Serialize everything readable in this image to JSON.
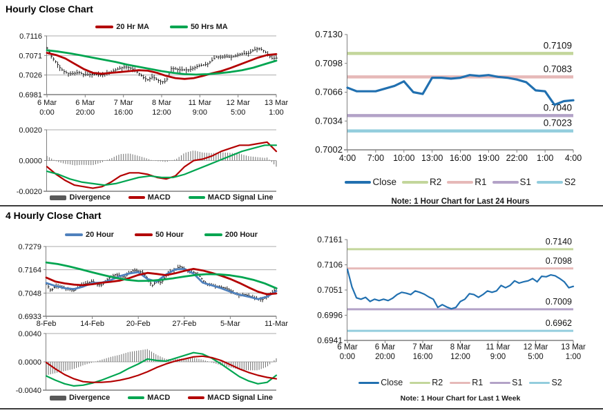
{
  "page": {
    "background": "#ffffff",
    "divider_color": "#3a3a3a"
  },
  "titles": {
    "hourly": "Hourly Close Chart",
    "four_hourly": "4 Hourly Close Chart"
  },
  "notes": {
    "hourly_pivot": "Note: 1 Hour Chart for Last 24 Hours",
    "weekly_pivot": "Note: 1 Hour Chart for Last 1 Week"
  },
  "colors": {
    "red": "#b30000",
    "green": "#00a550",
    "steel_blue": "#4f81bd",
    "close_blue": "#2170b0",
    "r2": "#c3d69b",
    "r1": "#e6b9b8",
    "s1": "#b3a2c7",
    "s2": "#93cddd",
    "divergence_bar": "#6e6e6e",
    "divergence_swatch": "#595959",
    "candle": "#1a1a1a"
  },
  "chart_data": [
    {
      "id": "hourly_price",
      "type": "candlestick",
      "ylim": [
        0.6981,
        0.7116
      ],
      "yticks": {
        "values": [
          0.7116,
          0.7071,
          0.7026,
          0.6981
        ],
        "labels": [
          "0.7116",
          "0.7071",
          "0.7026",
          "0.6981"
        ]
      },
      "xlabels": [
        [
          "6 Mar",
          "0:00"
        ],
        [
          "6 Mar",
          "20:00"
        ],
        [
          "7 Mar",
          "16:00"
        ],
        [
          "8 Mar",
          "12:00"
        ],
        [
          "11 Mar",
          "9:00"
        ],
        [
          "12 Mar",
          "5:00"
        ],
        [
          "13 Mar",
          "1:00"
        ]
      ],
      "legend": [
        {
          "label": "20 Hr MA",
          "color": "#b30000"
        },
        {
          "label": "50 Hrs MA",
          "color": "#00a550"
        }
      ],
      "bar_color": "#1a1a1a",
      "close": [
        0.7088,
        0.7068,
        0.7055,
        0.704,
        0.7032,
        0.7029,
        0.703,
        0.7032,
        0.7027,
        0.7027,
        0.7028,
        0.7027,
        0.7026,
        0.703,
        0.7033,
        0.7038,
        0.7042,
        0.7045,
        0.7043,
        0.7038,
        0.703,
        0.702,
        0.7015,
        0.7022,
        0.7015,
        0.701,
        0.7012,
        0.7041,
        0.704,
        0.7038,
        0.7038,
        0.7038,
        0.7042,
        0.7047,
        0.7049,
        0.7051,
        0.706,
        0.7068,
        0.7067,
        0.7068,
        0.7067,
        0.7069,
        0.7074,
        0.7075,
        0.7076,
        0.7083,
        0.7087,
        0.7084,
        0.7075,
        0.7064,
        0.7065
      ],
      "series": [
        {
          "name": "20 Hr MA",
          "color": "#b30000",
          "values": [
            0.7077,
            0.7072,
            0.7064,
            0.7052,
            0.704,
            0.7031,
            0.7029,
            0.7031,
            0.7033,
            0.7035,
            0.7037,
            0.7036,
            0.7031,
            0.7024,
            0.7019,
            0.7017,
            0.7019,
            0.7024,
            0.703,
            0.7035,
            0.7042,
            0.705,
            0.7058,
            0.7066,
            0.7072,
            0.7074
          ]
        },
        {
          "name": "50 Hrs MA",
          "color": "#00a550",
          "values": [
            0.7083,
            0.708,
            0.7076,
            0.7071,
            0.7066,
            0.7061,
            0.7056,
            0.705,
            0.7045,
            0.704,
            0.7035,
            0.7031,
            0.7028,
            0.7027,
            0.7028,
            0.703,
            0.7033,
            0.7037,
            0.7043,
            0.7051,
            0.7059
          ]
        }
      ]
    },
    {
      "id": "hourly_macd",
      "type": "macd",
      "ylim": [
        -0.002,
        0.002
      ],
      "yticks": {
        "values": [
          0.002,
          0.0,
          -0.002
        ],
        "labels": [
          "0.0020",
          "0.0000",
          "-0.0020"
        ]
      },
      "legend": [
        {
          "label": "Divergence",
          "color": "#595959",
          "swatch": "bar"
        },
        {
          "label": "MACD",
          "color": "#b30000"
        },
        {
          "label": "MACD Signal Line",
          "color": "#00a550"
        }
      ],
      "bar_color": "#6e6e6e",
      "macd": {
        "color": "#b30000",
        "values": [
          -0.0004,
          -0.0009,
          -0.0013,
          -0.0016,
          -0.0017,
          -0.0018,
          -0.0017,
          -0.0014,
          -0.001,
          -0.0008,
          -0.0008,
          -0.0009,
          -0.0011,
          -0.0012,
          -0.001,
          -0.0004,
          0.0,
          0.0001,
          0.0003,
          0.0006,
          0.0008,
          0.001,
          0.001,
          0.0011,
          0.0012,
          0.0006
        ]
      },
      "signal": {
        "color": "#00a550",
        "values": [
          -0.0007,
          -0.0009,
          -0.0012,
          -0.0014,
          -0.0015,
          -0.0016,
          -0.0015,
          -0.0013,
          -0.0011,
          -0.001,
          -0.0011,
          -0.0011,
          -0.0009,
          -0.0006,
          -0.0003,
          0.0,
          0.0003,
          0.0006,
          0.0008,
          0.001,
          0.001
        ]
      }
    },
    {
      "id": "hourly_pivot",
      "type": "line",
      "ylim": [
        0.7002,
        0.713
      ],
      "yticks": {
        "values": [
          0.713,
          0.7098,
          0.7066,
          0.7034,
          0.7002
        ],
        "labels": [
          "0.7130",
          "0.7098",
          "0.7066",
          "0.7034",
          "0.7002"
        ]
      },
      "xlabels": [
        "4:00",
        "7:00",
        "10:00",
        "13:00",
        "16:00",
        "19:00",
        "22:00",
        "1:00",
        "4:00"
      ],
      "close": {
        "name": "Close",
        "color": "#2170b0",
        "values": [
          0.7071,
          0.7067,
          0.7067,
          0.7067,
          0.707,
          0.7073,
          0.7078,
          0.7066,
          0.7064,
          0.7082,
          0.7082,
          0.7081,
          0.7082,
          0.7085,
          0.7084,
          0.7085,
          0.7083,
          0.7082,
          0.708,
          0.7077,
          0.7068,
          0.7067,
          0.7052,
          0.7056,
          0.7057
        ]
      },
      "levels": [
        {
          "name": "R2",
          "value": 0.7109,
          "label": "0.7109",
          "color": "#c3d69b"
        },
        {
          "name": "R1",
          "value": 0.7083,
          "label": "0.7083",
          "color": "#e6b9b8"
        },
        {
          "name": "S1",
          "value": 0.704,
          "label": "0.7040",
          "color": "#b3a2c7"
        },
        {
          "name": "S2",
          "value": 0.7023,
          "label": "0.7023",
          "color": "#93cddd"
        }
      ],
      "legend": [
        {
          "label": "Close",
          "color": "#2170b0"
        },
        {
          "label": "R2",
          "color": "#c3d69b"
        },
        {
          "label": "R1",
          "color": "#e6b9b8"
        },
        {
          "label": "S1",
          "color": "#b3a2c7"
        },
        {
          "label": "S2",
          "color": "#93cddd"
        }
      ]
    },
    {
      "id": "four_hourly_price",
      "type": "candlestick",
      "ylim": [
        0.6933,
        0.7279
      ],
      "yticks": {
        "values": [
          0.7279,
          0.7164,
          0.7048,
          0.6933
        ],
        "labels": [
          "0.7279",
          "0.7164",
          "0.7048",
          "0.6933"
        ]
      },
      "xlabels": [
        "8-Feb",
        "14-Feb",
        "20-Feb",
        "27-Feb",
        "5-Mar",
        "11-Mar"
      ],
      "legend": [
        {
          "label": "20 Hour",
          "color": "#4f81bd"
        },
        {
          "label": "50 Hour",
          "color": "#b30000"
        },
        {
          "label": "200 Hour",
          "color": "#00a550"
        }
      ],
      "bar_color": "#1a1a1a",
      "close": [
        0.7095,
        0.7058,
        0.7084,
        0.7081,
        0.7075,
        0.7066,
        0.7061,
        0.7078,
        0.7091,
        0.7098,
        0.7108,
        0.7091,
        0.7088,
        0.711,
        0.7128,
        0.714,
        0.7135,
        0.7125,
        0.715,
        0.716,
        0.7158,
        0.7148,
        0.712,
        0.7085,
        0.7108,
        0.71,
        0.7135,
        0.7155,
        0.7165,
        0.718,
        0.717,
        0.7148,
        0.7152,
        0.714,
        0.7112,
        0.709,
        0.7086,
        0.7082,
        0.7077,
        0.7072,
        0.706,
        0.7045,
        0.7036,
        0.7042,
        0.7034,
        0.7026,
        0.702,
        0.7016,
        0.7032,
        0.7046,
        0.7072
      ],
      "series": [
        {
          "name": "20 Hour",
          "color": "#4f81bd",
          "values": [
            0.7098,
            0.7083,
            0.7072,
            0.7068,
            0.708,
            0.7098,
            0.71,
            0.7112,
            0.7132,
            0.7145,
            0.7152,
            0.7118,
            0.7105,
            0.714,
            0.7165,
            0.7168,
            0.7145,
            0.71,
            0.7086,
            0.7072,
            0.7055,
            0.704,
            0.703,
            0.7018,
            0.703,
            0.7058
          ]
        },
        {
          "name": "50 Hour",
          "color": "#b30000",
          "values": [
            0.7125,
            0.7105,
            0.7096,
            0.709,
            0.7087,
            0.7092,
            0.7099,
            0.7104,
            0.711,
            0.7122,
            0.7138,
            0.7148,
            0.7143,
            0.7137,
            0.7146,
            0.7158,
            0.7168,
            0.716,
            0.7148,
            0.7134,
            0.7118,
            0.7098,
            0.7076,
            0.7055,
            0.7042,
            0.7046
          ]
        },
        {
          "name": "200 Hour",
          "color": "#00a550",
          "values": [
            0.72,
            0.7192,
            0.718,
            0.7166,
            0.7151,
            0.7137,
            0.7124,
            0.7114,
            0.7108,
            0.7109,
            0.7114,
            0.7121,
            0.713,
            0.7138,
            0.7142,
            0.7141,
            0.7136,
            0.7127,
            0.7114,
            0.7096,
            0.7072
          ]
        }
      ]
    },
    {
      "id": "four_hourly_macd",
      "type": "macd",
      "ylim": [
        -0.004,
        0.004
      ],
      "yticks": {
        "values": [
          0.004,
          0.0,
          -0.004
        ],
        "labels": [
          "0.0040",
          "0.0000",
          "-0.0040"
        ]
      },
      "legend": [
        {
          "label": "Divergence",
          "color": "#595959",
          "swatch": "bar"
        },
        {
          "label": "MACD",
          "color": "#00a550"
        },
        {
          "label": "MACD Signal Line",
          "color": "#b30000"
        }
      ],
      "bar_color": "#6e6e6e",
      "macd": {
        "color": "#00a550",
        "values": [
          -0.002,
          -0.0026,
          -0.0031,
          -0.0034,
          -0.0033,
          -0.003,
          -0.0026,
          -0.0021,
          -0.0016,
          -0.0009,
          -0.0003,
          0.0004,
          0.0002,
          0.0001,
          0.0005,
          0.0009,
          0.0013,
          0.0011,
          0.0005,
          -0.0003,
          -0.0012,
          -0.0021,
          -0.0027,
          -0.0031,
          -0.0029,
          -0.0019
        ]
      },
      "signal": {
        "color": "#b30000",
        "values": [
          -0.0001,
          -0.001,
          -0.0018,
          -0.0024,
          -0.0028,
          -0.0029,
          -0.0029,
          -0.0028,
          -0.0026,
          -0.0023,
          -0.0019,
          -0.0014,
          -0.0008,
          -0.0003,
          0.0001,
          0.0004,
          0.0007,
          0.0008,
          0.0006,
          0.0002,
          -0.0004,
          -0.001,
          -0.0015,
          -0.0019,
          -0.0022,
          -0.0024
        ]
      }
    },
    {
      "id": "weekly_pivot",
      "type": "line",
      "ylim": [
        0.6941,
        0.7161
      ],
      "yticks": {
        "values": [
          0.7161,
          0.7106,
          0.7051,
          0.6996,
          0.6941
        ],
        "labels": [
          "0.7161",
          "0.7106",
          "0.7051",
          "0.6996",
          "0.6941"
        ]
      },
      "xlabels": [
        [
          "6 Mar",
          "0:00"
        ],
        [
          "6 Mar",
          "20:00"
        ],
        [
          "7 Mar",
          "16:00"
        ],
        [
          "8 Mar",
          "12:00"
        ],
        [
          "11 Mar",
          "9:00"
        ],
        [
          "12 Mar",
          "5:00"
        ],
        [
          "13 Mar",
          "1:00"
        ]
      ],
      "close": {
        "name": "Close",
        "color": "#2170b0",
        "values": [
          0.7096,
          0.7058,
          0.7034,
          0.7031,
          0.7035,
          0.7026,
          0.7031,
          0.7028,
          0.7031,
          0.7028,
          0.7033,
          0.7041,
          0.7046,
          0.7044,
          0.7041,
          0.7049,
          0.7046,
          0.7042,
          0.7036,
          0.7031,
          0.7013,
          0.7019,
          0.7014,
          0.701,
          0.7013,
          0.7026,
          0.7031,
          0.7043,
          0.7041,
          0.7035,
          0.7041,
          0.7049,
          0.7046,
          0.7049,
          0.7061,
          0.7056,
          0.7061,
          0.7071,
          0.7066,
          0.7069,
          0.7071,
          0.7076,
          0.7069,
          0.7081,
          0.708,
          0.7084,
          0.7082,
          0.7076,
          0.7069,
          0.7056,
          0.7059
        ]
      },
      "levels": [
        {
          "name": "R2",
          "value": 0.714,
          "label": "0.7140",
          "color": "#c3d69b"
        },
        {
          "name": "R1",
          "value": 0.7098,
          "label": "0.7098",
          "color": "#e6b9b8"
        },
        {
          "name": "S1",
          "value": 0.7009,
          "label": "0.7009",
          "color": "#b3a2c7"
        },
        {
          "name": "S2",
          "value": 0.6962,
          "label": "0.6962",
          "color": "#93cddd"
        }
      ],
      "legend": [
        {
          "label": "Close",
          "color": "#2170b0"
        },
        {
          "label": "R2",
          "color": "#c3d69b"
        },
        {
          "label": "R1",
          "color": "#e6b9b8"
        },
        {
          "label": "S1",
          "color": "#b3a2c7"
        },
        {
          "label": "S2",
          "color": "#93cddd"
        }
      ]
    }
  ]
}
